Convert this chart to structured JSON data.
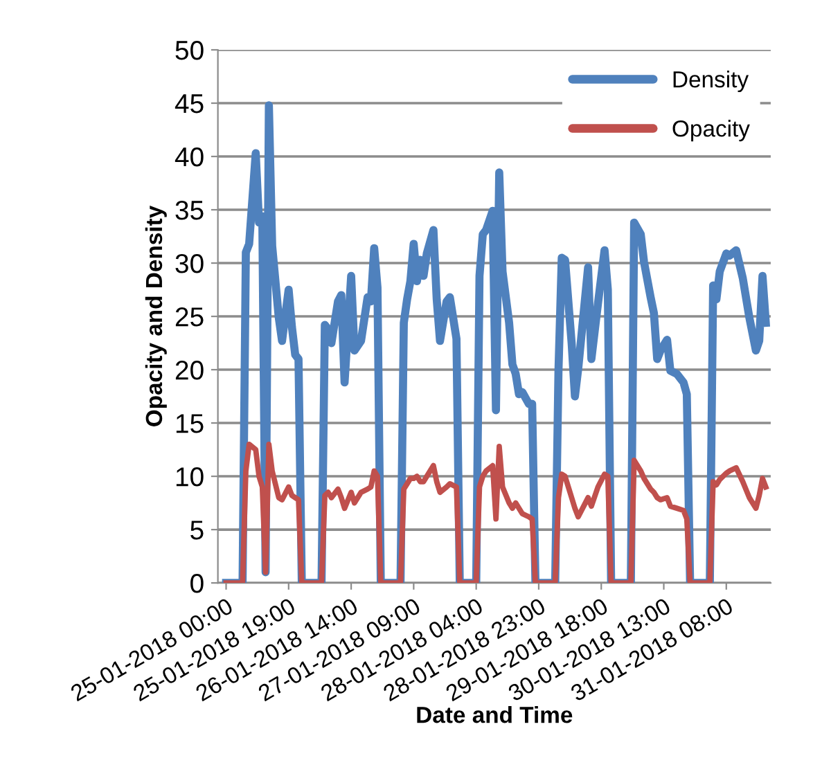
{
  "chart_data": {
    "type": "line",
    "xlabel": "Date and Time",
    "ylabel": "Opacity and Density",
    "x": [
      "2018-01-25T00:00",
      "2018-01-25T05:00",
      "2018-01-25T06:00",
      "2018-01-25T07:00",
      "2018-01-25T09:00",
      "2018-01-25T10:00",
      "2018-01-25T11:00",
      "2018-01-25T12:00",
      "2018-01-25T13:00",
      "2018-01-25T14:00",
      "2018-01-25T16:00",
      "2018-01-25T17:00",
      "2018-01-25T19:00",
      "2018-01-25T20:00",
      "2018-01-25T21:00",
      "2018-01-25T22:00",
      "2018-01-25T23:00",
      "2018-01-26T05:00",
      "2018-01-26T06:00",
      "2018-01-26T07:00",
      "2018-01-26T08:00",
      "2018-01-26T10:00",
      "2018-01-26T11:00",
      "2018-01-26T12:00",
      "2018-01-26T14:00",
      "2018-01-26T15:00",
      "2018-01-26T17:00",
      "2018-01-26T19:00",
      "2018-01-26T20:00",
      "2018-01-26T21:00",
      "2018-01-26T22:00",
      "2018-01-26T23:00",
      "2018-01-27T05:00",
      "2018-01-27T06:00",
      "2018-01-27T07:00",
      "2018-01-27T08:00",
      "2018-01-27T09:00",
      "2018-01-27T10:00",
      "2018-01-27T11:00",
      "2018-01-27T12:00",
      "2018-01-27T13:00",
      "2018-01-27T15:00",
      "2018-01-27T16:00",
      "2018-01-27T17:00",
      "2018-01-27T19:00",
      "2018-01-27T20:00",
      "2018-01-27T22:00",
      "2018-01-27T23:00",
      "2018-01-28T04:00",
      "2018-01-28T05:00",
      "2018-01-28T06:00",
      "2018-01-28T07:00",
      "2018-01-28T09:00",
      "2018-01-28T10:00",
      "2018-01-28T11:00",
      "2018-01-28T12:00",
      "2018-01-28T14:00",
      "2018-01-28T15:00",
      "2018-01-28T16:00",
      "2018-01-28T17:00",
      "2018-01-28T18:00",
      "2018-01-28T20:00",
      "2018-01-28T21:00",
      "2018-01-28T22:00",
      "2018-01-29T04:00",
      "2018-01-29T05:00",
      "2018-01-29T06:00",
      "2018-01-29T07:00",
      "2018-01-29T09:00",
      "2018-01-29T10:00",
      "2018-01-29T11:00",
      "2018-01-29T14:00",
      "2018-01-29T15:00",
      "2018-01-29T17:00",
      "2018-01-29T19:00",
      "2018-01-29T20:00",
      "2018-01-29T21:00",
      "2018-01-30T03:00",
      "2018-01-30T04:00",
      "2018-01-30T06:00",
      "2018-01-30T07:00",
      "2018-01-30T09:00",
      "2018-01-30T10:00",
      "2018-01-30T11:00",
      "2018-01-30T12:00",
      "2018-01-30T14:00",
      "2018-01-30T15:00",
      "2018-01-30T17:00",
      "2018-01-30T19:00",
      "2018-01-30T20:00",
      "2018-01-30T21:00",
      "2018-01-31T03:00",
      "2018-01-31T04:00",
      "2018-01-31T05:00",
      "2018-01-31T06:00",
      "2018-01-31T08:00",
      "2018-01-31T09:00",
      "2018-01-31T11:00",
      "2018-01-31T13:00",
      "2018-01-31T15:00",
      "2018-01-31T17:00",
      "2018-01-31T18:00",
      "2018-01-31T19:00",
      "2018-01-31T20:00"
    ],
    "series": [
      {
        "name": "Density",
        "color": "#4f81bd",
        "values": [
          0,
          0,
          31.0,
          31.8,
          40.3,
          33.8,
          34.4,
          1.0,
          44.8,
          31.6,
          24.9,
          22.7,
          27.5,
          24.0,
          21.4,
          21.0,
          0,
          0,
          24.2,
          23.8,
          22.5,
          26.4,
          27.0,
          18.8,
          28.8,
          21.8,
          22.7,
          26.8,
          26.4,
          31.4,
          27.7,
          0,
          0,
          24.4,
          26.6,
          28.3,
          31.8,
          28.3,
          30.3,
          28.8,
          30.9,
          33.1,
          26.6,
          22.7,
          26.4,
          26.8,
          22.9,
          0,
          0,
          28.8,
          32.7,
          33.1,
          34.9,
          16.2,
          38.5,
          29.2,
          24.4,
          20.5,
          19.6,
          17.7,
          17.9,
          16.8,
          16.8,
          0,
          0,
          19.9,
          30.5,
          30.3,
          22.5,
          17.5,
          20.1,
          29.6,
          21.0,
          26.2,
          31.2,
          27.5,
          0,
          0,
          33.8,
          32.7,
          30.1,
          26.8,
          25.3,
          21.0,
          21.8,
          22.8,
          19.9,
          19.6,
          18.8,
          17.7,
          0,
          0,
          27.9,
          26.6,
          29.2,
          30.9,
          30.7,
          31.2,
          28.6,
          24.9,
          21.8,
          22.7,
          28.8,
          24.4
        ]
      },
      {
        "name": "Opacity",
        "color": "#c0504d",
        "values": [
          0,
          0,
          10.5,
          13.0,
          12.5,
          10.0,
          9.0,
          1.0,
          13.0,
          10.5,
          8.0,
          7.8,
          9.0,
          8.2,
          8.0,
          7.8,
          0,
          0,
          8.2,
          8.5,
          8.0,
          8.8,
          8.0,
          7.0,
          8.5,
          7.5,
          8.5,
          8.8,
          9.0,
          10.5,
          10.0,
          0,
          0,
          8.8,
          9.3,
          9.8,
          9.8,
          10.0,
          9.5,
          9.5,
          10.0,
          11.0,
          9.5,
          8.5,
          9.0,
          9.3,
          9.0,
          0,
          0,
          9.0,
          10.0,
          10.5,
          11.0,
          6.0,
          12.8,
          9.0,
          7.5,
          7.0,
          7.5,
          7.0,
          6.5,
          6.2,
          6.0,
          0,
          0,
          8.0,
          10.2,
          10.0,
          8.0,
          7.0,
          6.2,
          8.0,
          7.2,
          9.0,
          10.2,
          10.0,
          0,
          0,
          11.5,
          10.5,
          9.8,
          8.8,
          8.5,
          8.0,
          7.8,
          8.0,
          7.2,
          7.0,
          6.8,
          6.0,
          0,
          0,
          9.5,
          9.2,
          9.7,
          10.3,
          10.5,
          10.8,
          9.5,
          8.0,
          7.0,
          8.2,
          9.8,
          9.0
        ]
      }
    ],
    "xlim": [
      "2018-01-24T21:30",
      "2018-01-31T21:30"
    ],
    "xticks": [
      {
        "value": "2018-01-25T00:00",
        "label": "25-01-2018 00:00"
      },
      {
        "value": "2018-01-25T19:00",
        "label": "25-01-2018 19:00"
      },
      {
        "value": "2018-01-26T14:00",
        "label": "26-01-2018 14:00"
      },
      {
        "value": "2018-01-27T09:00",
        "label": "27-01-2018 09:00"
      },
      {
        "value": "2018-01-28T04:00",
        "label": "28-01-2018 04:00"
      },
      {
        "value": "2018-01-28T23:00",
        "label": "28-01-2018 23:00"
      },
      {
        "value": "2018-01-29T18:00",
        "label": "29-01-2018 18:00"
      },
      {
        "value": "2018-01-30T13:00",
        "label": "30-01-2018 13:00"
      },
      {
        "value": "2018-01-31T08:00",
        "label": "31-01-2018 08:00"
      }
    ],
    "ylim": [
      0,
      50
    ],
    "yticks": [
      0,
      5,
      10,
      15,
      20,
      25,
      30,
      35,
      40,
      45,
      50
    ],
    "grid": "y",
    "legend": "top right",
    "line_style": "solid",
    "marker": "none"
  }
}
